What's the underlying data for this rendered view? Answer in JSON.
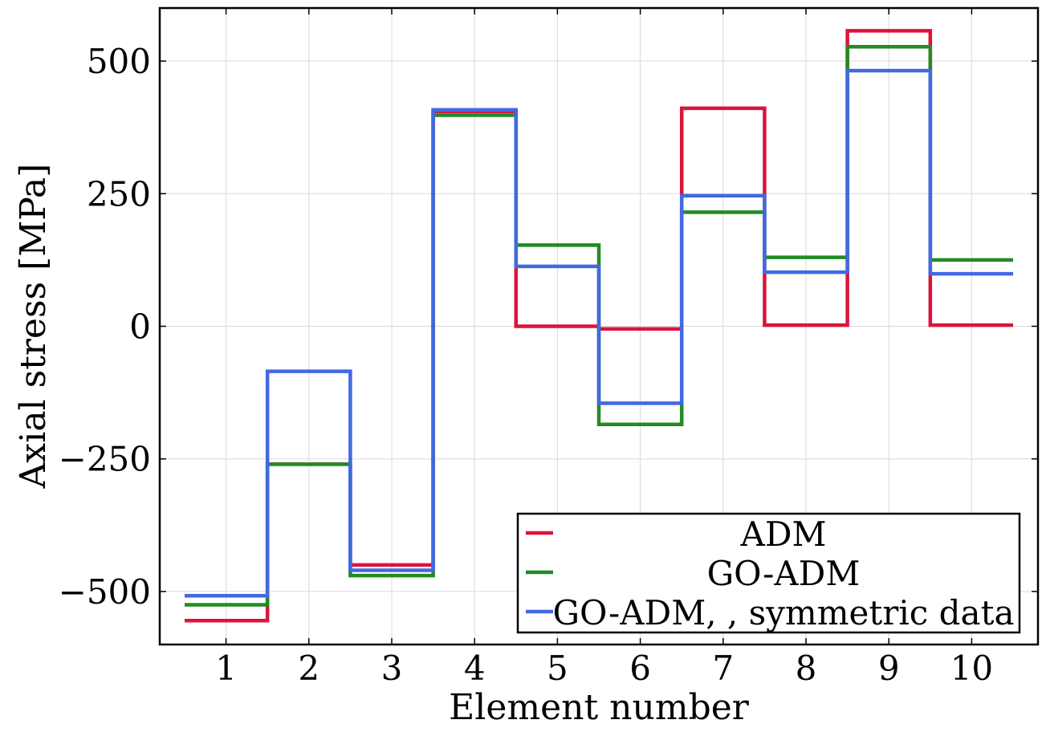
{
  "chart_data": {
    "type": "line",
    "step": true,
    "title": "",
    "xlabel": "Element number",
    "ylabel": "Axial stress [MPa]",
    "categories": [
      1,
      2,
      3,
      4,
      5,
      6,
      7,
      8,
      9,
      10
    ],
    "xlim": [
      0.2,
      10.8
    ],
    "ylim": [
      -600,
      600
    ],
    "yticks": [
      -500,
      -250,
      0,
      250,
      500
    ],
    "ytick_labels": [
      "−500",
      "−250",
      "0",
      "250",
      "500"
    ],
    "xtick_labels": [
      "1",
      "2",
      "3",
      "4",
      "5",
      "6",
      "7",
      "8",
      "9",
      "10"
    ],
    "grid": true,
    "legend_position": "bottom-right",
    "series": [
      {
        "name": "ADM",
        "color": "#dc143c",
        "values": [
          -555,
          -260,
          -450,
          405,
          0,
          -5,
          411,
          2,
          557,
          2
        ]
      },
      {
        "name": "GO-ADM",
        "color": "#228b22",
        "values": [
          -525,
          -260,
          -470,
          398,
          153,
          -185,
          215,
          130,
          527,
          125
        ]
      },
      {
        "name": "GO-ADM, , symmetric data",
        "color": "#4169e1",
        "values": [
          -508,
          -85,
          -460,
          408,
          113,
          -145,
          246,
          102,
          482,
          99
        ]
      }
    ]
  }
}
